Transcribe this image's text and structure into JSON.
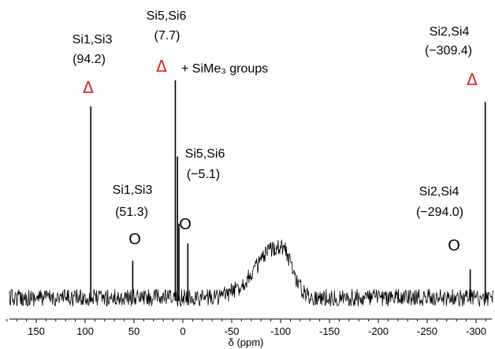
{
  "chart_data": {
    "type": "line",
    "xlabel": "δ (ppm)",
    "xlim": [
      185,
      -325
    ],
    "x_reversed": true,
    "x_ticks": [
      150,
      100,
      50,
      0,
      -50,
      -100,
      -150,
      -200,
      -250,
      -300
    ],
    "x_tick_labels": [
      "150",
      "100",
      "50",
      "0",
      "-50",
      "-100",
      "-150",
      "-200",
      "-250",
      "-300"
    ],
    "y_axis_shown": false,
    "grid": false,
    "colors": {
      "trace": "#000000",
      "triangle": "#e02020",
      "circle": "#2c4fb0",
      "text": "#000000"
    },
    "series": [
      {
        "peaks": [
          {
            "ppm": 94.2,
            "height": 0.88,
            "marker": "triangle"
          },
          {
            "ppm": 51.3,
            "height": 0.17,
            "marker": "circle"
          },
          {
            "ppm": 7.7,
            "height": 1.0,
            "marker": "triangle"
          },
          {
            "ppm": 5.5,
            "height": 0.65
          },
          {
            "ppm": 4.0,
            "height": 0.34
          },
          {
            "ppm": -5.1,
            "height": 0.25,
            "marker": "circle"
          },
          {
            "ppm": -294.0,
            "height": 0.13,
            "marker": "circle"
          },
          {
            "ppm": -309.4,
            "height": 0.9,
            "marker": "triangle"
          }
        ],
        "broad_hump": {
          "center_ppm": -100,
          "height": 0.24
        },
        "baseline": 0
      }
    ],
    "annotations": [
      {
        "id": "si13-tri",
        "name": "Si1,Si3",
        "value": "(94.2)",
        "marker_symbol": "Δ",
        "marker": "triangle"
      },
      {
        "id": "si56-tri",
        "name": "Si5,Si6",
        "value": "(7.7)",
        "marker_symbol": "Δ",
        "marker": "triangle",
        "extra": "+ SiMe₃ groups"
      },
      {
        "id": "si24-tri",
        "name": "Si2,Si4",
        "value": "(−309.4)",
        "marker_symbol": "Δ",
        "marker": "triangle"
      },
      {
        "id": "si13-circ",
        "name": "Si1,Si3",
        "value": "(51.3)",
        "marker_symbol": "O",
        "marker": "circle"
      },
      {
        "id": "si56-circ",
        "name": "Si5,Si6",
        "value": "(−5.1)",
        "marker_symbol": "O",
        "marker": "circle"
      },
      {
        "id": "si24-circ",
        "name": "Si2,Si4",
        "value": "(−294.0)",
        "marker_symbol": "O",
        "marker": "circle"
      }
    ]
  }
}
